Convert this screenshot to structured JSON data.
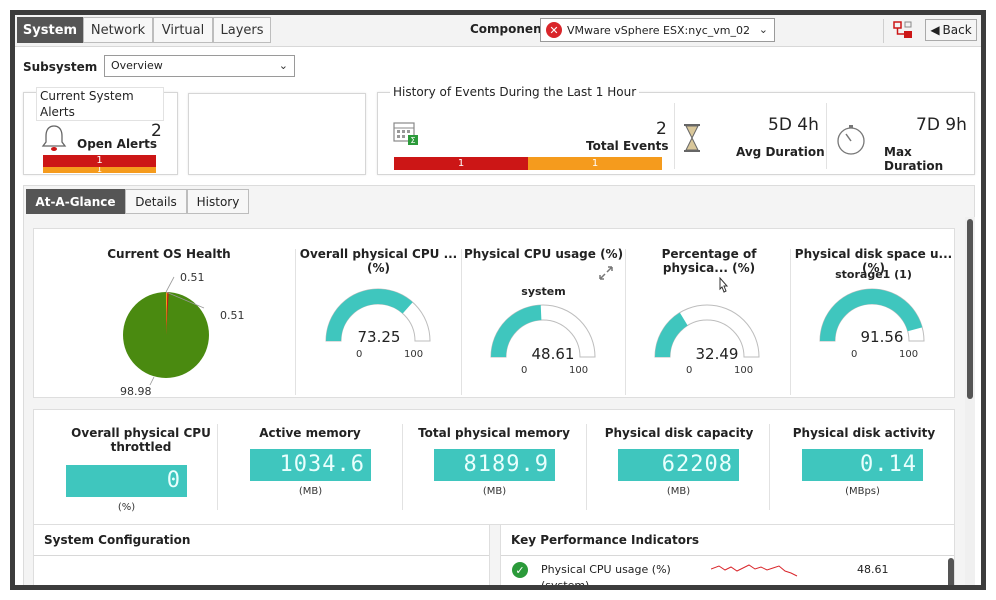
{
  "top_tabs": [
    "System",
    "Network",
    "Virtual",
    "Layers"
  ],
  "component": {
    "label": "Component",
    "value": "VMware vSphere ESX:nyc_vm_02"
  },
  "back_label": "Back",
  "subsystem": {
    "label": "Subsystem",
    "value": "Overview"
  },
  "current_alerts": {
    "title": "Current System Alerts",
    "open_label": "Open Alerts",
    "count": "2",
    "red": "1",
    "orange": "1"
  },
  "history": {
    "title": "History of Events During the Last 1 Hour",
    "total_label": "Total Events",
    "total": "2",
    "red": "1",
    "orange": "1",
    "avg_label": "Avg Duration",
    "avg": "5D 4h",
    "max_label": "Max Duration",
    "max": "7D 9h"
  },
  "view_tabs": [
    "At-A-Glance",
    "Details",
    "History"
  ],
  "os_health": {
    "title": "Current OS Health",
    "labels": [
      "0.51",
      "0.51",
      "98.98"
    ],
    "values": [
      0.51,
      0.51,
      98.98
    ],
    "colors": [
      "#f59b1d",
      "#cc1616",
      "#4a8a10"
    ]
  },
  "gauges": [
    {
      "title": "Overall physical CPU ... (%)",
      "sub": "",
      "value": "73.25",
      "min": "0",
      "max": "100",
      "frac": 0.7325
    },
    {
      "title": "Physical CPU usage (%)",
      "sub": "system",
      "value": "48.61",
      "min": "0",
      "max": "100",
      "frac": 0.4861
    },
    {
      "title": "Percentage of physica... (%)",
      "sub": "",
      "value": "32.49",
      "min": "0",
      "max": "100",
      "frac": 0.3249
    },
    {
      "title": "Physical disk space u... (%)",
      "sub": "storage1 (1)",
      "value": "91.56",
      "min": "0",
      "max": "100",
      "frac": 0.9156
    }
  ],
  "metrics": [
    {
      "title": "Overall physical CPU throttled",
      "value": "0",
      "unit": "(%)"
    },
    {
      "title": "Active memory",
      "value": "1034.6",
      "unit": "(MB)"
    },
    {
      "title": "Total physical memory",
      "value": "8189.9",
      "unit": "(MB)"
    },
    {
      "title": "Physical disk capacity",
      "value": "62208",
      "unit": "(MB)"
    },
    {
      "title": "Physical disk activity",
      "value": "0.14",
      "unit": "(MBps)"
    }
  ],
  "system_config": {
    "title": "System Configuration"
  },
  "kpi": {
    "title": "Key Performance Indicators",
    "row_label": "Physical CPU usage (%)",
    "row_sub": "(system)",
    "row_value": "48.61"
  },
  "colors": {
    "accent": "#3fc6be",
    "gauge_bg": "#e5e5e5",
    "alert_red": "#cc1616",
    "alert_orange": "#f59b1d"
  }
}
